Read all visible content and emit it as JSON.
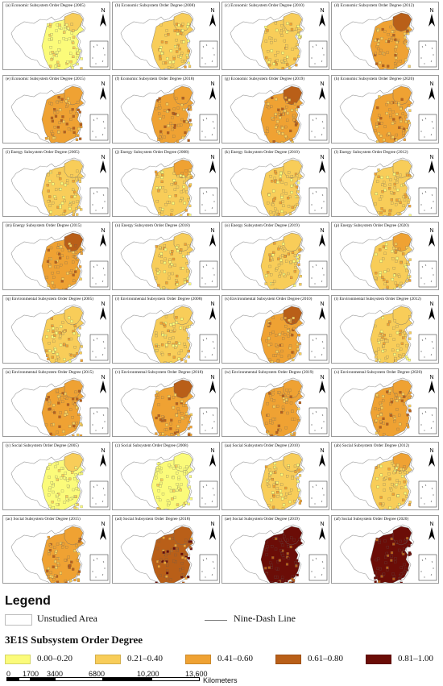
{
  "panels": [
    {
      "label": "(a) Economic Subsystem Order Degree (2005)",
      "level": 0
    },
    {
      "label": "(b) Economic Subsystem Order Degree (2008)",
      "level": 1
    },
    {
      "label": "(c) Economic Subsystem Order Degree (2010)",
      "level": 1
    },
    {
      "label": "(d) Economic Subsystem Order Degree (2012)",
      "level": 2
    },
    {
      "label": "(e) Economic Subsystem Order Degree (2015)",
      "level": 2
    },
    {
      "label": "(f) Economic Subsystem Order Degree (2018)",
      "level": 2
    },
    {
      "label": "(g) Economic Subsystem Order Degree (2019)",
      "level": 2
    },
    {
      "label": "(h) Economic Subsystem Order Degree (2020)",
      "level": 2
    },
    {
      "label": "(i) Energy Subsystem Order Degree (2005)",
      "level": 1
    },
    {
      "label": "(j) Energy Subsystem Order Degree (2008)",
      "level": 1
    },
    {
      "label": "(k) Energy Subsystem Order Degree (2010)",
      "level": 1
    },
    {
      "label": "(l) Energy Subsystem Order Degree (2012)",
      "level": 1
    },
    {
      "label": "(m) Energy Subsystem Order Degree (2015)",
      "level": 2
    },
    {
      "label": "(n) Energy Subsystem Order Degree (2018)",
      "level": 1
    },
    {
      "label": "(o) Energy Subsystem Order Degree (2019)",
      "level": 1
    },
    {
      "label": "(p) Energy Subsystem Order Degree (2020)",
      "level": 1
    },
    {
      "label": "(q) Environmental Subsystem Order Degree (2005)",
      "level": 1
    },
    {
      "label": "(r) Environmental Subsystem Order Degree (2008)",
      "level": 1
    },
    {
      "label": "(s) Environmental Subsystem Order Degree (2010)",
      "level": 2
    },
    {
      "label": "(t) Environmental Subsystem Order Degree (2012)",
      "level": 1
    },
    {
      "label": "(u) Environmental Subsystem Order Degree (2015)",
      "level": 2
    },
    {
      "label": "(v) Environmental Subsystem Order Degree (2018)",
      "level": 2
    },
    {
      "label": "(w) Environmental Subsystem Order Degree (2019)",
      "level": 2
    },
    {
      "label": "(x) Environmental Subsystem Order Degree (2020)",
      "level": 2
    },
    {
      "label": "(y) Social Subsystem Order Degree (2005)",
      "level": 0
    },
    {
      "label": "(z) Social Subsystem Order Degree (2008)",
      "level": 0
    },
    {
      "label": "(aa) Social Subsystem Order Degree (2010)",
      "level": 1
    },
    {
      "label": "(ab) Social Subsystem Order Degree (2012)",
      "level": 1
    },
    {
      "label": "(ac) Social Subsystem Order Degree (2015)",
      "level": 2
    },
    {
      "label": "(ad) Social Subsystem Order Degree (2018)",
      "level": 3
    },
    {
      "label": "(ae) Social Subsystem Order Degree (2019)",
      "level": 4
    },
    {
      "label": "(af) Social Subsystem Order Degree (2020)",
      "level": 4
    }
  ],
  "north_label": "N",
  "legend": {
    "title": "Legend",
    "unstudied_label": "Unstudied Area",
    "nine_dash_label": "Nine-Dash Line",
    "subtitle": "3E1S Subsystem Order Degree",
    "classes": [
      {
        "range": "0.00–0.20",
        "color": "#fbfb7a"
      },
      {
        "range": "0.21–0.40",
        "color": "#f8cd59"
      },
      {
        "range": "0.41–0.60",
        "color": "#efa233"
      },
      {
        "range": "0.61–0.80",
        "color": "#b95f18"
      },
      {
        "range": "0.81–1.00",
        "color": "#6b0d07"
      }
    ]
  },
  "scale": {
    "ticks": [
      "0",
      "1700",
      "3400",
      "6800",
      "10,200",
      "13,600"
    ],
    "unit": "Kilometers"
  }
}
